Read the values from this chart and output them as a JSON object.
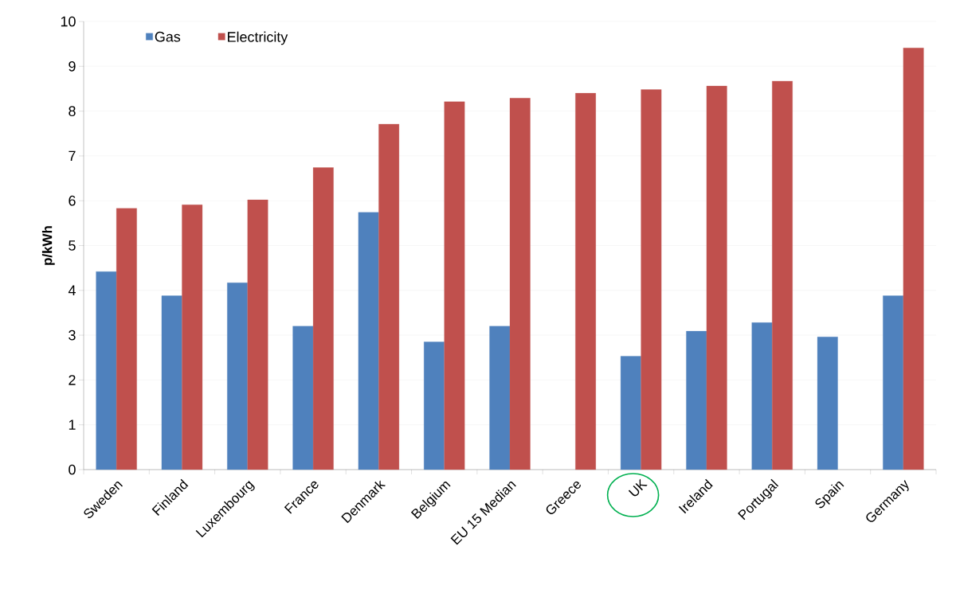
{
  "chart_data": {
    "type": "bar",
    "ylabel": "p/kWh",
    "categories": [
      "Sweden",
      "Finland",
      "Luxembourg",
      "France",
      "Denmark",
      "Belgium",
      "EU 15 Median",
      "Greece",
      "UK",
      "Ireland",
      "Portugal",
      "Spain",
      "Germany"
    ],
    "series": [
      {
        "name": "Gas",
        "color": "#4f81bd",
        "values": [
          4.42,
          3.88,
          4.17,
          3.2,
          5.74,
          2.85,
          3.2,
          null,
          2.53,
          3.09,
          3.28,
          2.96,
          3.88
        ]
      },
      {
        "name": "Electricity",
        "color": "#c0504d",
        "values": [
          5.83,
          5.91,
          6.02,
          6.74,
          7.71,
          8.21,
          8.29,
          8.4,
          8.48,
          8.56,
          8.67,
          null,
          9.41
        ]
      }
    ],
    "ylim": [
      0,
      10
    ],
    "yticks": [
      0,
      1,
      2,
      3,
      4,
      5,
      6,
      7,
      8,
      9,
      10
    ],
    "grid": "y",
    "legend": "top left"
  }
}
